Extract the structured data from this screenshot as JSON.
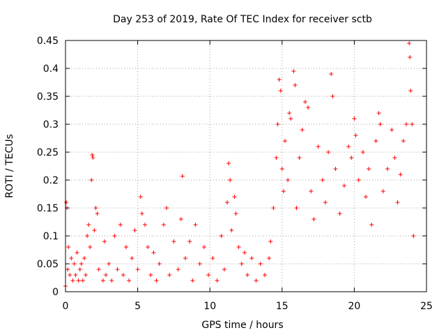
{
  "chart_data": {
    "type": "scatter",
    "title": "Day 253 of 2019, Rate Of TEC Index for receiver sctb",
    "xlabel": "GPS time / hours",
    "ylabel": "ROTI / TECUs",
    "xlim": [
      0,
      25
    ],
    "ylim": [
      0,
      0.45
    ],
    "x_ticks": [
      "0",
      "5",
      "10",
      "15",
      "20",
      "25"
    ],
    "y_ticks": [
      "0",
      "0.05",
      "0.1",
      "0.15",
      "0.2",
      "0.25",
      "0.3",
      "0.35",
      "0.4",
      "0.45"
    ],
    "grid": true,
    "marker": "+",
    "color": "#ff0000",
    "series": [
      {
        "values": [
          [
            0.0,
            0.01
          ],
          [
            0.05,
            0.16
          ],
          [
            0.1,
            0.15
          ],
          [
            0.15,
            0.04
          ],
          [
            0.2,
            0.08
          ],
          [
            0.3,
            0.03
          ],
          [
            0.4,
            0.06
          ],
          [
            0.5,
            0.02
          ],
          [
            0.6,
            0.05
          ],
          [
            0.7,
            0.03
          ],
          [
            0.8,
            0.07
          ],
          [
            0.9,
            0.02
          ],
          [
            1.0,
            0.04
          ],
          [
            1.1,
            0.05
          ],
          [
            1.2,
            0.02
          ],
          [
            1.3,
            0.06
          ],
          [
            1.4,
            0.03
          ],
          [
            1.5,
            0.1
          ],
          [
            1.6,
            0.12
          ],
          [
            1.7,
            0.08
          ],
          [
            1.8,
            0.2
          ],
          [
            1.85,
            0.245
          ],
          [
            1.9,
            0.24
          ],
          [
            2.0,
            0.11
          ],
          [
            2.1,
            0.15
          ],
          [
            2.2,
            0.14
          ],
          [
            2.3,
            0.04
          ],
          [
            2.6,
            0.02
          ],
          [
            2.7,
            0.09
          ],
          [
            2.8,
            0.03
          ],
          [
            3.0,
            0.05
          ],
          [
            3.2,
            0.02
          ],
          [
            3.4,
            0.1
          ],
          [
            3.6,
            0.04
          ],
          [
            3.8,
            0.12
          ],
          [
            4.0,
            0.03
          ],
          [
            4.2,
            0.08
          ],
          [
            4.4,
            0.02
          ],
          [
            4.6,
            0.06
          ],
          [
            4.8,
            0.11
          ],
          [
            5.0,
            0.04
          ],
          [
            5.2,
            0.17
          ],
          [
            5.3,
            0.14
          ],
          [
            5.5,
            0.12
          ],
          [
            5.7,
            0.08
          ],
          [
            5.9,
            0.03
          ],
          [
            6.1,
            0.07
          ],
          [
            6.3,
            0.02
          ],
          [
            6.5,
            0.05
          ],
          [
            6.8,
            0.12
          ],
          [
            7.0,
            0.15
          ],
          [
            7.2,
            0.03
          ],
          [
            7.5,
            0.09
          ],
          [
            7.8,
            0.04
          ],
          [
            8.0,
            0.13
          ],
          [
            8.1,
            0.207
          ],
          [
            8.3,
            0.06
          ],
          [
            8.6,
            0.09
          ],
          [
            8.8,
            0.02
          ],
          [
            9.0,
            0.12
          ],
          [
            9.3,
            0.05
          ],
          [
            9.6,
            0.08
          ],
          [
            9.9,
            0.03
          ],
          [
            10.2,
            0.06
          ],
          [
            10.5,
            0.02
          ],
          [
            10.8,
            0.1
          ],
          [
            11.0,
            0.04
          ],
          [
            11.2,
            0.16
          ],
          [
            11.3,
            0.23
          ],
          [
            11.4,
            0.2
          ],
          [
            11.5,
            0.11
          ],
          [
            11.7,
            0.17
          ],
          [
            11.8,
            0.14
          ],
          [
            12.0,
            0.08
          ],
          [
            12.2,
            0.05
          ],
          [
            12.4,
            0.07
          ],
          [
            12.6,
            0.03
          ],
          [
            12.9,
            0.06
          ],
          [
            13.2,
            0.02
          ],
          [
            13.5,
            0.05
          ],
          [
            13.8,
            0.03
          ],
          [
            14.1,
            0.06
          ],
          [
            14.2,
            0.09
          ],
          [
            14.4,
            0.15
          ],
          [
            14.6,
            0.24
          ],
          [
            14.7,
            0.3
          ],
          [
            14.8,
            0.38
          ],
          [
            14.9,
            0.36
          ],
          [
            15.0,
            0.22
          ],
          [
            15.1,
            0.18
          ],
          [
            15.2,
            0.27
          ],
          [
            15.4,
            0.2
          ],
          [
            15.5,
            0.32
          ],
          [
            15.6,
            0.31
          ],
          [
            15.8,
            0.395
          ],
          [
            15.9,
            0.37
          ],
          [
            16.0,
            0.15
          ],
          [
            16.2,
            0.24
          ],
          [
            16.4,
            0.29
          ],
          [
            16.6,
            0.34
          ],
          [
            16.8,
            0.33
          ],
          [
            17.0,
            0.18
          ],
          [
            17.2,
            0.13
          ],
          [
            17.5,
            0.26
          ],
          [
            17.8,
            0.2
          ],
          [
            18.0,
            0.16
          ],
          [
            18.2,
            0.25
          ],
          [
            18.4,
            0.39
          ],
          [
            18.5,
            0.35
          ],
          [
            18.7,
            0.22
          ],
          [
            19.0,
            0.14
          ],
          [
            19.3,
            0.19
          ],
          [
            19.6,
            0.26
          ],
          [
            19.8,
            0.24
          ],
          [
            20.0,
            0.31
          ],
          [
            20.1,
            0.28
          ],
          [
            20.3,
            0.2
          ],
          [
            20.6,
            0.25
          ],
          [
            20.8,
            0.17
          ],
          [
            21.0,
            0.22
          ],
          [
            21.2,
            0.12
          ],
          [
            21.5,
            0.27
          ],
          [
            21.7,
            0.32
          ],
          [
            21.8,
            0.3
          ],
          [
            22.0,
            0.18
          ],
          [
            22.3,
            0.22
          ],
          [
            22.6,
            0.29
          ],
          [
            22.8,
            0.24
          ],
          [
            23.0,
            0.16
          ],
          [
            23.2,
            0.21
          ],
          [
            23.4,
            0.27
          ],
          [
            23.6,
            0.3
          ],
          [
            23.8,
            0.445
          ],
          [
            23.85,
            0.42
          ],
          [
            23.9,
            0.36
          ],
          [
            24.0,
            0.3
          ],
          [
            24.1,
            0.1
          ]
        ]
      }
    ]
  }
}
